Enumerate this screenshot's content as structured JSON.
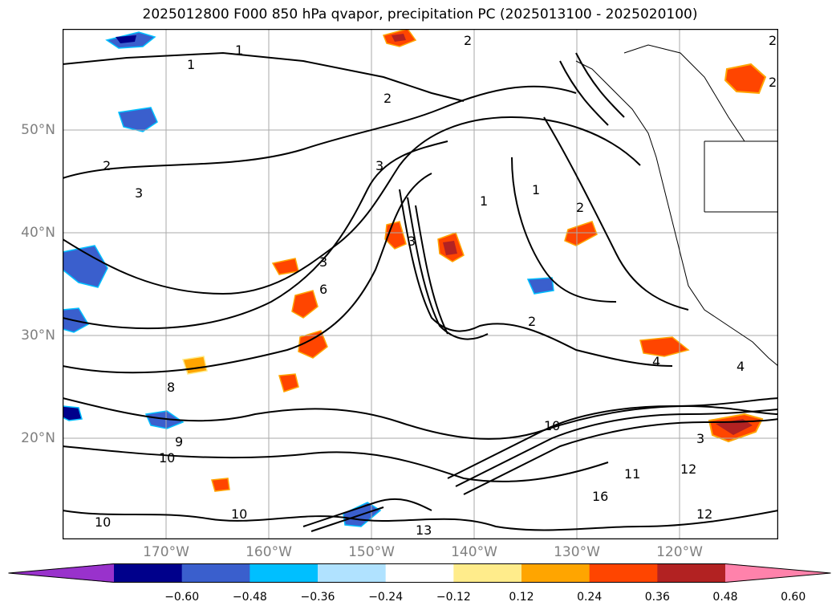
{
  "title": "2025012800 F000 850 hPa qvapor, precipitation PC (2025013100 - 2025020100)",
  "lat_labels": [
    "50°N",
    "40°N",
    "30°N",
    "20°N"
  ],
  "lon_labels": [
    "170°W",
    "160°W",
    "150°W",
    "140°W",
    "130°W",
    "120°W"
  ],
  "colorbar": {
    "colors": [
      "#9932cc",
      "#00008b",
      "#3a5fcd",
      "#00bfff",
      "#b0e2ff",
      "#ffffff",
      "#ffec8b",
      "#ffa500",
      "#ff4500",
      "#b22222",
      "#ff82ab"
    ],
    "ticks": [
      "−0.60",
      "−0.48",
      "−0.36",
      "−0.24",
      "−0.12",
      "0.12",
      "0.24",
      "0.36",
      "0.48",
      "0.60"
    ]
  },
  "contour_labels": [
    "1",
    "2",
    "3",
    "4",
    "6",
    "8",
    "9",
    "10",
    "11",
    "12",
    "13",
    "16"
  ]
}
